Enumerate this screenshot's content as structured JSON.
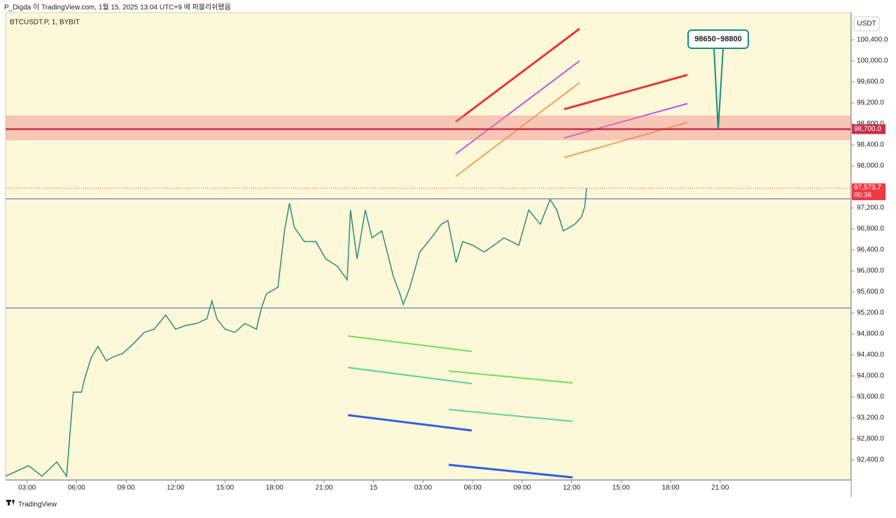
{
  "published": "P_Digda 이 TradingView.com, 1월 15, 2025 13:04 UTC+9 에 퍼블리쉬됐음",
  "footer": "TradingView",
  "chart_data": {
    "type": "line",
    "title": "BTCUSDT.P, 1, BYBIT",
    "currency": "USDT",
    "series": [
      {
        "color": "#2a8c82",
        "x": [
          1.7,
          3.1,
          3.9,
          4.8,
          5.4,
          5.6,
          5.8,
          6.3,
          6.5,
          6.9,
          7.3,
          7.8,
          8.2,
          8.8,
          9.5,
          10.1,
          10.7,
          11.4,
          12.0,
          12.6,
          13.3,
          13.9,
          14.2,
          14.5,
          15.0,
          15.6,
          16.2,
          16.9,
          17.2,
          17.5,
          18.2,
          18.6,
          18.9,
          19.2,
          19.8,
          20.5,
          21.1,
          21.8,
          22.4,
          22.6,
          23.0,
          23.5,
          23.9,
          24.5,
          25.2,
          25.6,
          25.8,
          26.2,
          26.8,
          27.5,
          28.1,
          28.5,
          29.0,
          29.4,
          30.0,
          30.7,
          31.3,
          31.9,
          32.8,
          33.4,
          34.1,
          34.7,
          35.1,
          35.5,
          36.2,
          36.6,
          36.8,
          36.9
        ],
        "values": [
          92090,
          92290,
          92090,
          92360,
          92090,
          92890,
          93690,
          93690,
          93960,
          94360,
          94560,
          94290,
          94360,
          94430,
          94630,
          94830,
          94890,
          95160,
          94890,
          94960,
          95000,
          95090,
          95430,
          95090,
          94890,
          94830,
          95000,
          94890,
          95290,
          95560,
          95690,
          96760,
          97290,
          96830,
          96560,
          96560,
          96230,
          96090,
          95830,
          97160,
          96230,
          97160,
          96630,
          96760,
          95890,
          95560,
          95360,
          95690,
          96360,
          96630,
          96890,
          96960,
          96160,
          96560,
          96490,
          96360,
          96490,
          96630,
          96490,
          97160,
          96890,
          97360,
          97160,
          96760,
          96890,
          97030,
          97230,
          97573.7
        ]
      }
    ],
    "ylim": [
      92027,
      100920
    ],
    "yticks": [
      {
        "value": 92400,
        "label": "92,400.0"
      },
      {
        "value": 92800,
        "label": "92,800.0"
      },
      {
        "value": 93200,
        "label": "93,200.0"
      },
      {
        "value": 93600,
        "label": "93,600.0"
      },
      {
        "value": 94000,
        "label": "94,000.0"
      },
      {
        "value": 94400,
        "label": "94,400.0"
      },
      {
        "value": 94800,
        "label": "94,800.0"
      },
      {
        "value": 95200,
        "label": "95,200.0"
      },
      {
        "value": 95600,
        "label": "95,600.0"
      },
      {
        "value": 96000,
        "label": "96,000.0"
      },
      {
        "value": 96400,
        "label": "96,400.0"
      },
      {
        "value": 96800,
        "label": "96,800.0"
      },
      {
        "value": 97200,
        "label": "97,200.0"
      },
      {
        "value": 97600,
        "label": "97,600.0"
      },
      {
        "value": 98000,
        "label": "98,000.0"
      },
      {
        "value": 98400,
        "label": "98,400.0"
      },
      {
        "value": 98800,
        "label": "98,800.0"
      },
      {
        "value": 99200,
        "label": "99,200.0"
      },
      {
        "value": 99600,
        "label": "99,600.0"
      },
      {
        "value": 100000,
        "label": "100,000.0"
      },
      {
        "value": 100400,
        "label": "100,400.0"
      }
    ],
    "xlim": [
      1.7,
      52.9
    ],
    "xticks": [
      {
        "value": 3,
        "label": "03:00"
      },
      {
        "value": 6,
        "label": "06:00"
      },
      {
        "value": 9,
        "label": "09:00"
      },
      {
        "value": 12,
        "label": "12:00"
      },
      {
        "value": 15,
        "label": "15:00"
      },
      {
        "value": 18,
        "label": "18:00"
      },
      {
        "value": 21,
        "label": "21:00"
      },
      {
        "value": 24,
        "label": "15"
      },
      {
        "value": 27,
        "label": "03:00"
      },
      {
        "value": 30,
        "label": "06:00"
      },
      {
        "value": 33,
        "label": "09:00"
      },
      {
        "value": 36,
        "label": "12:00"
      },
      {
        "value": 39,
        "label": "15:00"
      },
      {
        "value": 42,
        "label": "18:00"
      },
      {
        "value": 45,
        "label": "21:00"
      }
    ],
    "zone": {
      "label": "98650~98800",
      "range": [
        98650,
        98800
      ],
      "color": "#f08a8a"
    },
    "price_line": {
      "value": 98700,
      "label": "98,700.0",
      "color": "#c8304a"
    },
    "last_price": {
      "value": 97573.7,
      "label": "97,573.7",
      "countdown": "00:36",
      "color": "#f23645"
    }
  }
}
